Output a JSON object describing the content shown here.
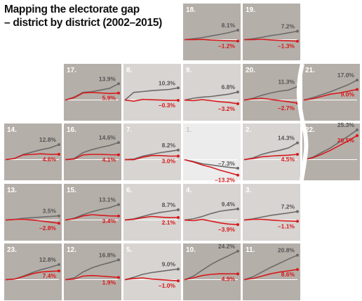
{
  "title": {
    "line1": "Mapping the electorate gap",
    "line2": "– district by district (2002–2015)"
  },
  "colors": {
    "dark_tile": "#b5afa9",
    "light_tile": "#d7d4d1",
    "lightest_tile": "#ececec",
    "grey_line": "#6b6b6b",
    "red_line": "#d7191c",
    "grey_label": "#555555",
    "red_label": "#d7191c"
  },
  "chart_data": {
    "type": "line",
    "description_of_series": [
      "grey line",
      "red line"
    ],
    "x_range": [
      2002,
      2015
    ],
    "districts": [
      {
        "label": "18.",
        "grey": [
          0,
          0.8,
          1.8,
          3.2,
          4.5,
          6.0,
          8.1
        ],
        "red": [
          0,
          0.1,
          0.2,
          -0.3,
          -0.6,
          -0.9,
          -1.2
        ],
        "grey_label": "8.1%",
        "red_label": "–1.2%",
        "shade": "dark"
      },
      {
        "label": "19.",
        "grey": [
          0,
          0.8,
          2.0,
          3.5,
          4.5,
          5.8,
          7.2
        ],
        "red": [
          0,
          0.0,
          0.3,
          -0.2,
          -0.6,
          -0.9,
          -1.3
        ],
        "grey_label": "7.2%",
        "red_label": "–1.3%",
        "shade": "dark"
      },
      {
        "label": "17.",
        "grey": [
          0,
          2.5,
          6.5,
          7.2,
          8.5,
          10.0,
          13.9
        ],
        "red": [
          0,
          2.0,
          6.0,
          6.5,
          6.0,
          5.5,
          5.9
        ],
        "grey_label": "13.9%",
        "red_label": "5.9%",
        "shade": "dark"
      },
      {
        "label": "8.",
        "grey": [
          0,
          6.5,
          7.2,
          8.0,
          8.5,
          9.0,
          10.3
        ],
        "red": [
          0,
          -1.0,
          0.5,
          0.2,
          0.0,
          -0.2,
          -0.3
        ],
        "grey_label": "10.3%",
        "red_label": "–0.3%",
        "shade": "light"
      },
      {
        "label": "9.",
        "grey": [
          0,
          1.5,
          2.5,
          3.0,
          4.0,
          5.0,
          6.8
        ],
        "red": [
          0,
          -0.5,
          0.3,
          -0.5,
          -1.5,
          -2.0,
          -3.2
        ],
        "grey_label": "6.8%",
        "red_label": "–3.2%",
        "shade": "light"
      },
      {
        "label": "20.",
        "grey": [
          0,
          1.5,
          4.0,
          6.0,
          7.5,
          8.5,
          11.3
        ],
        "red": [
          0,
          1.0,
          1.5,
          0.5,
          -0.5,
          -1.5,
          -2.7
        ],
        "grey_label": "11.3%",
        "red_label": "–2.7%",
        "shade": "dark"
      },
      {
        "label": "21.",
        "grey": [
          0,
          2.0,
          4.5,
          7.0,
          10.0,
          13.0,
          17.0
        ],
        "red": [
          0,
          1.0,
          3.0,
          5.0,
          6.0,
          7.5,
          9.0
        ],
        "grey_label": "17.0%",
        "red_label": "9.0%",
        "shade": "dark"
      },
      {
        "label": "14.",
        "grey": [
          0,
          1.0,
          4.5,
          6.5,
          8.5,
          10.0,
          12.8
        ],
        "red": [
          0,
          1.0,
          4.0,
          4.5,
          5.0,
          4.5,
          4.6
        ],
        "grey_label": "12.8%",
        "red_label": "4.6%",
        "shade": "dark"
      },
      {
        "label": "16.",
        "grey": [
          0,
          1.0,
          6.0,
          8.5,
          10.5,
          12.0,
          14.6
        ],
        "red": [
          0,
          0.5,
          4.0,
          4.5,
          4.5,
          4.2,
          4.1
        ],
        "grey_label": "14.6%",
        "red_label": "4.1%",
        "shade": "dark"
      },
      {
        "label": "7.",
        "grey": [
          0,
          0.5,
          3.0,
          4.5,
          6.0,
          7.0,
          8.2
        ],
        "red": [
          0,
          0.0,
          2.0,
          3.5,
          3.5,
          3.0,
          3.0
        ],
        "grey_label": "8.2%",
        "red_label": "3.0%",
        "shade": "light"
      },
      {
        "label": "1.",
        "grey": [
          0,
          -1.5,
          -3.5,
          -4.5,
          -5.5,
          -6.5,
          -7.3
        ],
        "red": [
          0,
          -2.0,
          -4.5,
          -6.5,
          -9.0,
          -11.0,
          -13.2
        ],
        "grey_label": "–7.3%",
        "red_label": "–13.2%",
        "shade": "lightest"
      },
      {
        "label": "2.",
        "grey": [
          0,
          1.5,
          4.5,
          6.5,
          8.0,
          10.0,
          14.3
        ],
        "red": [
          0,
          1.0,
          2.5,
          3.0,
          3.5,
          3.8,
          4.5
        ],
        "grey_label": "14.3%",
        "red_label": "4.5%",
        "shade": "light"
      },
      {
        "label": "22.",
        "grey": [
          0,
          2.0,
          6.0,
          10.0,
          15.0,
          20.0,
          25.3
        ],
        "red": [
          0,
          1.5,
          4.5,
          8.0,
          12.0,
          16.0,
          20.5
        ],
        "grey_label": "25.3%",
        "red_label": "20.5%",
        "shade": "dark"
      },
      {
        "label": "13.",
        "grey": [
          0,
          0.5,
          1.5,
          2.0,
          2.5,
          3.0,
          3.5
        ],
        "red": [
          0,
          0.3,
          0.5,
          0.0,
          -0.8,
          -1.8,
          -2.8
        ],
        "grey_label": "3.5%",
        "red_label": "–2.8%",
        "shade": "dark"
      },
      {
        "label": "15.",
        "grey": [
          0,
          1.5,
          4.5,
          7.0,
          9.0,
          10.5,
          13.1
        ],
        "red": [
          0,
          1.0,
          3.5,
          4.5,
          4.0,
          3.5,
          3.4
        ],
        "grey_label": "13.1%",
        "red_label": "3.4%",
        "shade": "dark"
      },
      {
        "label": "6.",
        "grey": [
          0,
          1.0,
          3.0,
          5.0,
          6.5,
          7.5,
          8.7
        ],
        "red": [
          0,
          0.5,
          2.0,
          3.0,
          2.5,
          2.0,
          2.1
        ],
        "grey_label": "8.7%",
        "red_label": "2.1%",
        "shade": "light"
      },
      {
        "label": "4.",
        "grey": [
          0,
          1.0,
          3.0,
          5.5,
          7.5,
          8.5,
          9.4
        ],
        "red": [
          0,
          -0.5,
          0.5,
          -1.0,
          -2.5,
          -3.5,
          -3.9
        ],
        "grey_label": "9.4%",
        "red_label": "–3.9%",
        "shade": "light"
      },
      {
        "label": "3.",
        "grey": [
          0,
          1.0,
          2.5,
          4.0,
          5.0,
          6.0,
          7.2
        ],
        "red": [
          0,
          0.5,
          0.5,
          0.0,
          -0.5,
          -0.8,
          -1.1
        ],
        "grey_label": "7.2%",
        "red_label": "–1.1%",
        "shade": "light"
      },
      {
        "label": "23.",
        "grey": [
          0,
          0.5,
          3.0,
          6.0,
          8.5,
          10.5,
          12.8
        ],
        "red": [
          0,
          0.5,
          2.5,
          5.0,
          6.5,
          7.0,
          7.4
        ],
        "grey_label": "12.8%",
        "red_label": "7.4%",
        "shade": "dark"
      },
      {
        "label": "12.",
        "grey": [
          0,
          1.5,
          6.5,
          10.0,
          12.5,
          14.5,
          16.8
        ],
        "red": [
          0,
          0.5,
          3.0,
          3.5,
          3.0,
          2.5,
          1.9
        ],
        "grey_label": "16.8%",
        "red_label": "1.9%",
        "shade": "dark"
      },
      {
        "label": "5.",
        "grey": [
          0,
          2.0,
          4.5,
          6.0,
          7.0,
          8.0,
          9.0
        ],
        "red": [
          0,
          1.0,
          1.5,
          0.5,
          0.0,
          -0.5,
          -1.0
        ],
        "grey_label": "9.0%",
        "red_label": "–1.0%",
        "shade": "light"
      },
      {
        "label": "10.",
        "grey": [
          0,
          3.0,
          8.0,
          13.0,
          17.0,
          20.5,
          24.2
        ],
        "red": [
          0,
          1.5,
          3.5,
          4.5,
          5.0,
          4.9,
          4.9
        ],
        "grey_label": "24.2%",
        "red_label": "4.9%",
        "shade": "dark"
      },
      {
        "label": "11.",
        "grey": [
          0,
          2.5,
          6.5,
          10.5,
          14.0,
          17.5,
          20.8
        ],
        "red": [
          0,
          1.0,
          3.0,
          5.0,
          6.5,
          7.5,
          8.6
        ],
        "grey_label": "20.8%",
        "red_label": "8.6%",
        "shade": "dark"
      }
    ]
  }
}
